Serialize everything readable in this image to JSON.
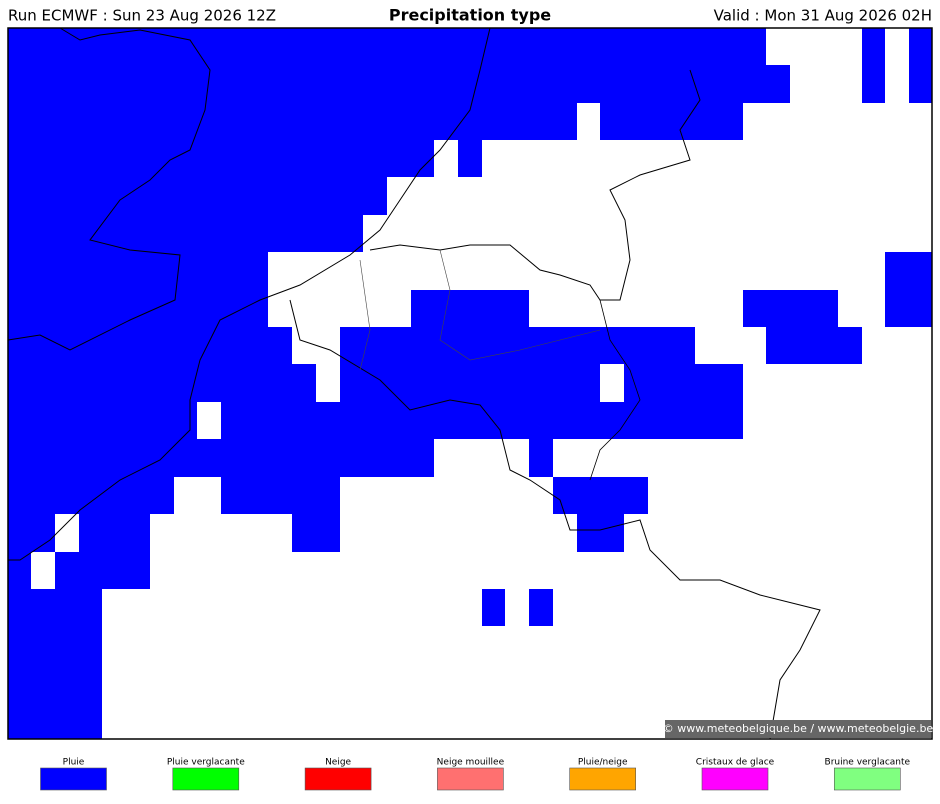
{
  "header": {
    "run": "Run ECMWF : Sun 23 Aug 2026 12Z",
    "title": "Precipitation type",
    "valid": "Valid : Mon 31 Aug 2026 02H"
  },
  "map": {
    "credit": "© www.meteobelgique.be / www.meteobelgie.be"
  },
  "legend": {
    "items": [
      {
        "label": "Pluie",
        "color": "#0000ff"
      },
      {
        "label": "Pluie verglacante",
        "color": "#00ff00"
      },
      {
        "label": "Neige",
        "color": "#ff0000"
      },
      {
        "label": "Neige mouillee",
        "color": "#ff7070"
      },
      {
        "label": "Pluie/neige",
        "color": "#ffa500"
      },
      {
        "label": "Cristaux de glace",
        "color": "#ff00ff"
      },
      {
        "label": "Bruine verglacante",
        "color": "#80ff80"
      }
    ]
  }
}
